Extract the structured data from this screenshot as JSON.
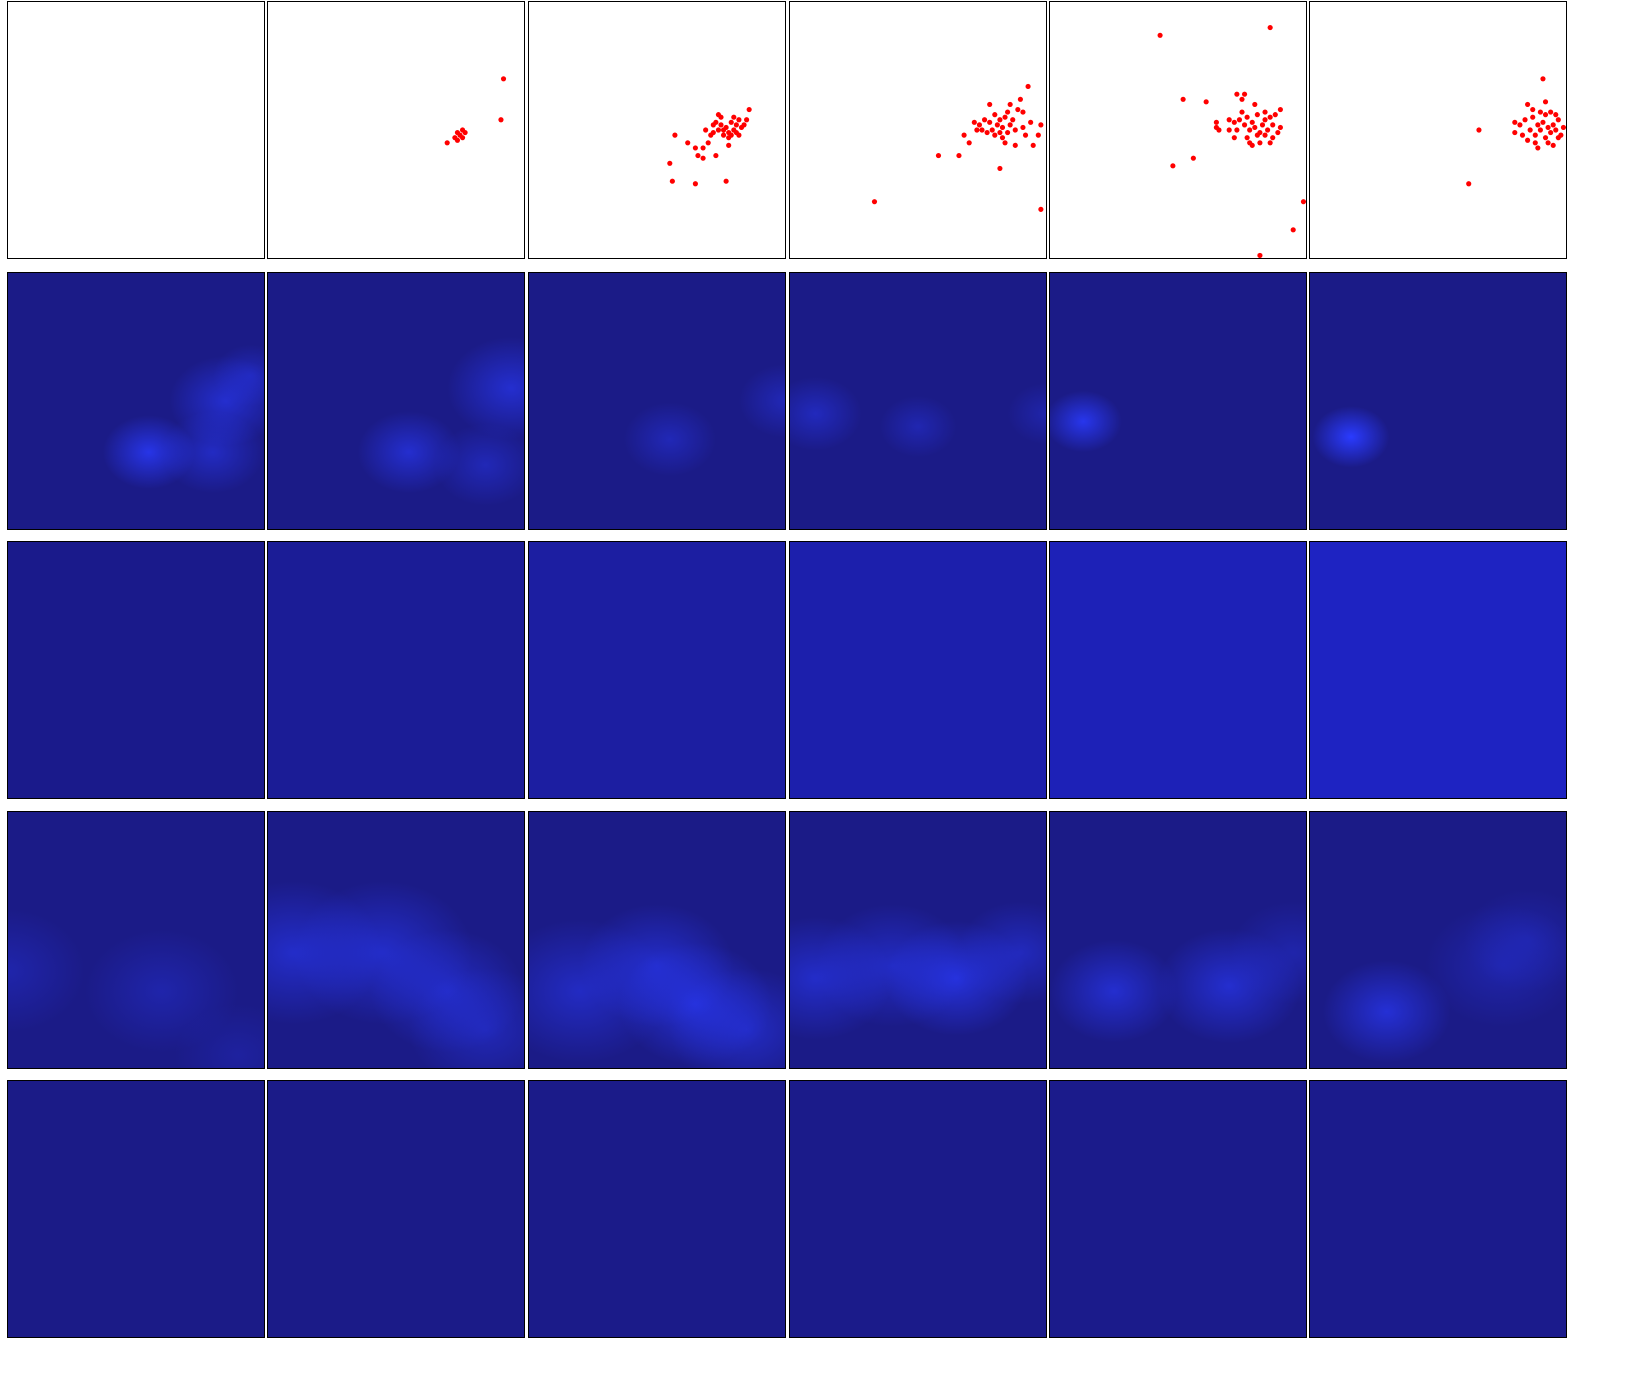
{
  "figure": {
    "rows": 5,
    "cols": 6,
    "row_kinds": [
      "scatter",
      "heatmap",
      "heatmap",
      "heatmap",
      "heatmap"
    ]
  },
  "colors": {
    "point": "#ff0000",
    "heat_base": "#1b1b87",
    "heat_row3_start": "#1a1a8b",
    "heat_row3_end": "#1e23c2",
    "heat_bright": "#2a3bff",
    "frame": "#000000"
  },
  "scatter_points": [
    [],
    [
      [
        0.92,
        0.3
      ],
      [
        0.91,
        0.46
      ],
      [
        0.7,
        0.55
      ],
      [
        0.73,
        0.53
      ],
      [
        0.74,
        0.51
      ],
      [
        0.75,
        0.52
      ],
      [
        0.76,
        0.53
      ],
      [
        0.77,
        0.51
      ],
      [
        0.74,
        0.54
      ],
      [
        0.76,
        0.5
      ]
    ],
    [
      [
        0.57,
        0.52
      ],
      [
        0.55,
        0.63
      ],
      [
        0.56,
        0.7
      ],
      [
        0.62,
        0.55
      ],
      [
        0.65,
        0.57
      ],
      [
        0.66,
        0.6
      ],
      [
        0.68,
        0.57
      ],
      [
        0.7,
        0.55
      ],
      [
        0.72,
        0.51
      ],
      [
        0.74,
        0.44
      ],
      [
        0.75,
        0.48
      ],
      [
        0.76,
        0.5
      ],
      [
        0.77,
        0.49
      ],
      [
        0.78,
        0.51
      ],
      [
        0.79,
        0.47
      ],
      [
        0.8,
        0.5
      ],
      [
        0.81,
        0.48
      ],
      [
        0.82,
        0.52
      ],
      [
        0.83,
        0.49
      ],
      [
        0.78,
        0.53
      ],
      [
        0.76,
        0.52
      ],
      [
        0.85,
        0.46
      ],
      [
        0.86,
        0.42
      ],
      [
        0.75,
        0.45
      ],
      [
        0.8,
        0.45
      ],
      [
        0.74,
        0.5
      ],
      [
        0.82,
        0.46
      ],
      [
        0.69,
        0.5
      ],
      [
        0.72,
        0.48
      ],
      [
        0.78,
        0.56
      ],
      [
        0.73,
        0.6
      ],
      [
        0.68,
        0.61
      ],
      [
        0.65,
        0.71
      ],
      [
        0.77,
        0.7
      ],
      [
        0.79,
        0.52
      ],
      [
        0.81,
        0.51
      ],
      [
        0.84,
        0.48
      ],
      [
        0.71,
        0.52
      ],
      [
        0.73,
        0.47
      ]
    ],
    [
      [
        0.33,
        0.78
      ],
      [
        0.58,
        0.6
      ],
      [
        0.66,
        0.6
      ],
      [
        0.7,
        0.55
      ],
      [
        0.72,
        0.47
      ],
      [
        0.74,
        0.48
      ],
      [
        0.76,
        0.46
      ],
      [
        0.78,
        0.47
      ],
      [
        0.79,
        0.5
      ],
      [
        0.8,
        0.44
      ],
      [
        0.81,
        0.48
      ],
      [
        0.82,
        0.46
      ],
      [
        0.83,
        0.49
      ],
      [
        0.84,
        0.45
      ],
      [
        0.85,
        0.43
      ],
      [
        0.86,
        0.48
      ],
      [
        0.87,
        0.46
      ],
      [
        0.85,
        0.51
      ],
      [
        0.82,
        0.51
      ],
      [
        0.8,
        0.52
      ],
      [
        0.77,
        0.51
      ],
      [
        0.75,
        0.5
      ],
      [
        0.88,
        0.5
      ],
      [
        0.9,
        0.38
      ],
      [
        0.91,
        0.49
      ],
      [
        0.93,
        0.33
      ],
      [
        0.97,
        0.52
      ],
      [
        0.98,
        0.48
      ],
      [
        0.86,
        0.4
      ],
      [
        0.78,
        0.4
      ],
      [
        0.84,
        0.55
      ],
      [
        0.88,
        0.56
      ],
      [
        0.82,
        0.65
      ],
      [
        0.95,
        0.56
      ],
      [
        0.91,
        0.43
      ],
      [
        0.89,
        0.42
      ],
      [
        0.83,
        0.53
      ],
      [
        0.94,
        0.47
      ],
      [
        0.92,
        0.52
      ],
      [
        0.98,
        0.81
      ],
      [
        0.73,
        0.5
      ],
      [
        0.68,
        0.52
      ]
    ],
    [
      [
        0.43,
        0.13
      ],
      [
        0.52,
        0.38
      ],
      [
        0.48,
        0.64
      ],
      [
        0.56,
        0.61
      ],
      [
        0.61,
        0.39
      ],
      [
        0.65,
        0.49
      ],
      [
        0.66,
        0.5
      ],
      [
        0.7,
        0.5
      ],
      [
        0.72,
        0.47
      ],
      [
        0.73,
        0.5
      ],
      [
        0.74,
        0.46
      ],
      [
        0.75,
        0.43
      ],
      [
        0.76,
        0.48
      ],
      [
        0.77,
        0.45
      ],
      [
        0.78,
        0.5
      ],
      [
        0.79,
        0.47
      ],
      [
        0.8,
        0.49
      ],
      [
        0.81,
        0.44
      ],
      [
        0.82,
        0.51
      ],
      [
        0.83,
        0.48
      ],
      [
        0.84,
        0.46
      ],
      [
        0.85,
        0.5
      ],
      [
        0.86,
        0.45
      ],
      [
        0.87,
        0.48
      ],
      [
        0.88,
        0.44
      ],
      [
        0.89,
        0.51
      ],
      [
        0.9,
        0.49
      ],
      [
        0.75,
        0.38
      ],
      [
        0.76,
        0.36
      ],
      [
        0.8,
        0.4
      ],
      [
        0.78,
        0.55
      ],
      [
        0.82,
        0.55
      ],
      [
        0.72,
        0.53
      ],
      [
        0.86,
        0.1
      ],
      [
        0.99,
        0.78
      ],
      [
        0.95,
        0.89
      ],
      [
        0.82,
        0.99
      ],
      [
        0.86,
        0.55
      ],
      [
        0.73,
        0.36
      ],
      [
        0.9,
        0.42
      ],
      [
        0.77,
        0.53
      ],
      [
        0.84,
        0.52
      ],
      [
        0.7,
        0.46
      ],
      [
        0.84,
        0.43
      ],
      [
        0.81,
        0.52
      ],
      [
        0.79,
        0.56
      ],
      [
        0.87,
        0.53
      ],
      [
        0.65,
        0.47
      ]
    ],
    [
      [
        0.66,
        0.5
      ],
      [
        0.62,
        0.71
      ],
      [
        0.8,
        0.47
      ],
      [
        0.82,
        0.48
      ],
      [
        0.84,
        0.46
      ],
      [
        0.86,
        0.5
      ],
      [
        0.87,
        0.45
      ],
      [
        0.88,
        0.52
      ],
      [
        0.89,
        0.48
      ],
      [
        0.9,
        0.5
      ],
      [
        0.91,
        0.47
      ],
      [
        0.92,
        0.53
      ],
      [
        0.93,
        0.49
      ],
      [
        0.94,
        0.51
      ],
      [
        0.95,
        0.48
      ],
      [
        0.96,
        0.5
      ],
      [
        0.97,
        0.46
      ],
      [
        0.98,
        0.52
      ],
      [
        0.99,
        0.49
      ],
      [
        0.85,
        0.54
      ],
      [
        0.88,
        0.55
      ],
      [
        0.92,
        0.44
      ],
      [
        0.9,
        0.43
      ],
      [
        0.87,
        0.42
      ],
      [
        0.92,
        0.39
      ],
      [
        0.91,
        0.3
      ],
      [
        0.95,
        0.56
      ],
      [
        0.85,
        0.4
      ],
      [
        0.94,
        0.43
      ],
      [
        0.89,
        0.57
      ],
      [
        0.93,
        0.55
      ],
      [
        0.97,
        0.53
      ],
      [
        0.83,
        0.52
      ],
      [
        0.96,
        0.44
      ],
      [
        0.8,
        0.51
      ]
    ]
  ],
  "heat_blobs": {
    "row2": [
      [
        [
          0.55,
          0.7,
          0.18,
          0.8
        ],
        [
          0.85,
          0.5,
          0.22,
          0.6
        ],
        [
          0.8,
          0.7,
          0.2,
          0.5
        ],
        [
          0.95,
          0.4,
          0.15,
          0.4
        ]
      ],
      [
        [
          0.55,
          0.7,
          0.2,
          0.6
        ],
        [
          0.95,
          0.45,
          0.25,
          0.6
        ],
        [
          0.85,
          0.75,
          0.2,
          0.4
        ]
      ],
      [
        [
          0.55,
          0.65,
          0.18,
          0.4
        ],
        [
          1.0,
          0.5,
          0.18,
          0.4
        ]
      ],
      [
        [
          0.1,
          0.55,
          0.18,
          0.45
        ],
        [
          0.5,
          0.6,
          0.15,
          0.35
        ],
        [
          1.0,
          0.55,
          0.15,
          0.3
        ]
      ],
      [
        [
          0.13,
          0.58,
          0.15,
          0.85
        ]
      ],
      [
        [
          0.16,
          0.64,
          0.15,
          1.0
        ]
      ]
    ],
    "row4": [
      [
        [
          0.0,
          0.62,
          0.3,
          0.3
        ],
        [
          0.6,
          0.7,
          0.3,
          0.3
        ],
        [
          0.9,
          0.95,
          0.25,
          0.2
        ]
      ],
      [
        [
          0.1,
          0.55,
          0.35,
          0.55
        ],
        [
          0.45,
          0.55,
          0.35,
          0.55
        ],
        [
          0.7,
          0.7,
          0.3,
          0.5
        ],
        [
          0.85,
          0.85,
          0.3,
          0.4
        ]
      ],
      [
        [
          0.2,
          0.7,
          0.35,
          0.5
        ],
        [
          0.5,
          0.6,
          0.3,
          0.55
        ],
        [
          0.65,
          0.75,
          0.3,
          0.65
        ],
        [
          0.85,
          0.85,
          0.3,
          0.5
        ]
      ],
      [
        [
          0.1,
          0.65,
          0.3,
          0.55
        ],
        [
          0.4,
          0.6,
          0.3,
          0.5
        ],
        [
          0.65,
          0.65,
          0.28,
          0.7
        ],
        [
          0.9,
          0.55,
          0.25,
          0.45
        ]
      ],
      [
        [
          0.25,
          0.7,
          0.25,
          0.6
        ],
        [
          0.7,
          0.68,
          0.28,
          0.6
        ],
        [
          0.95,
          0.55,
          0.25,
          0.3
        ]
      ],
      [
        [
          0.3,
          0.78,
          0.25,
          0.65
        ],
        [
          0.75,
          0.6,
          0.3,
          0.3
        ],
        [
          0.85,
          0.5,
          0.25,
          0.25
        ]
      ]
    ]
  }
}
